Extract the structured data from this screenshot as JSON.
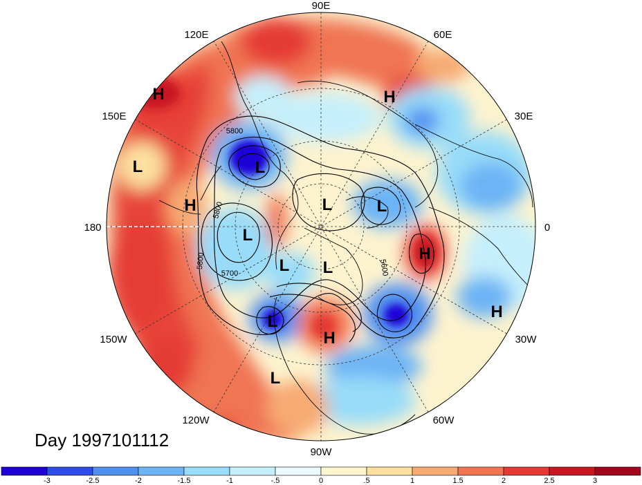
{
  "title": "Day 1997101112",
  "longitude_labels": [
    {
      "text": "90E",
      "name": "label-90e"
    },
    {
      "text": "60E",
      "name": "label-60e"
    },
    {
      "text": "30E",
      "name": "label-30e"
    },
    {
      "text": "0",
      "name": "label-0"
    },
    {
      "text": "30W",
      "name": "label-30w"
    },
    {
      "text": "60W",
      "name": "label-60w"
    },
    {
      "text": "90W",
      "name": "label-90w"
    },
    {
      "text": "120W",
      "name": "label-120w"
    },
    {
      "text": "150W",
      "name": "label-150w"
    },
    {
      "text": "180",
      "name": "label-180"
    },
    {
      "text": "150E",
      "name": "label-150e"
    },
    {
      "text": "120E",
      "name": "label-120e"
    }
  ],
  "pressure_centers": [
    "H",
    "H",
    "L",
    "H",
    "L",
    "L",
    "L",
    "L",
    "L",
    "L",
    "H",
    "H",
    "H",
    "L",
    "L"
  ],
  "contour_labels": [
    "5800",
    "5800",
    "5800",
    "5700",
    "5600"
  ],
  "colorbar": {
    "ticks": [
      "-3",
      "-2.5",
      "-2",
      "-1.5",
      "-1",
      "-.5",
      "0",
      ".5",
      "1",
      "1.5",
      "2",
      "2.5",
      "3"
    ],
    "colors": [
      "#1e00d6",
      "#2d4ce8",
      "#4f8ff0",
      "#6cb4f5",
      "#98dcf9",
      "#c5effc",
      "#eafaff",
      "#fdf6cf",
      "#fde0a0",
      "#f7aa72",
      "#f07552",
      "#e53a34",
      "#c81722",
      "#a1071c"
    ]
  }
}
